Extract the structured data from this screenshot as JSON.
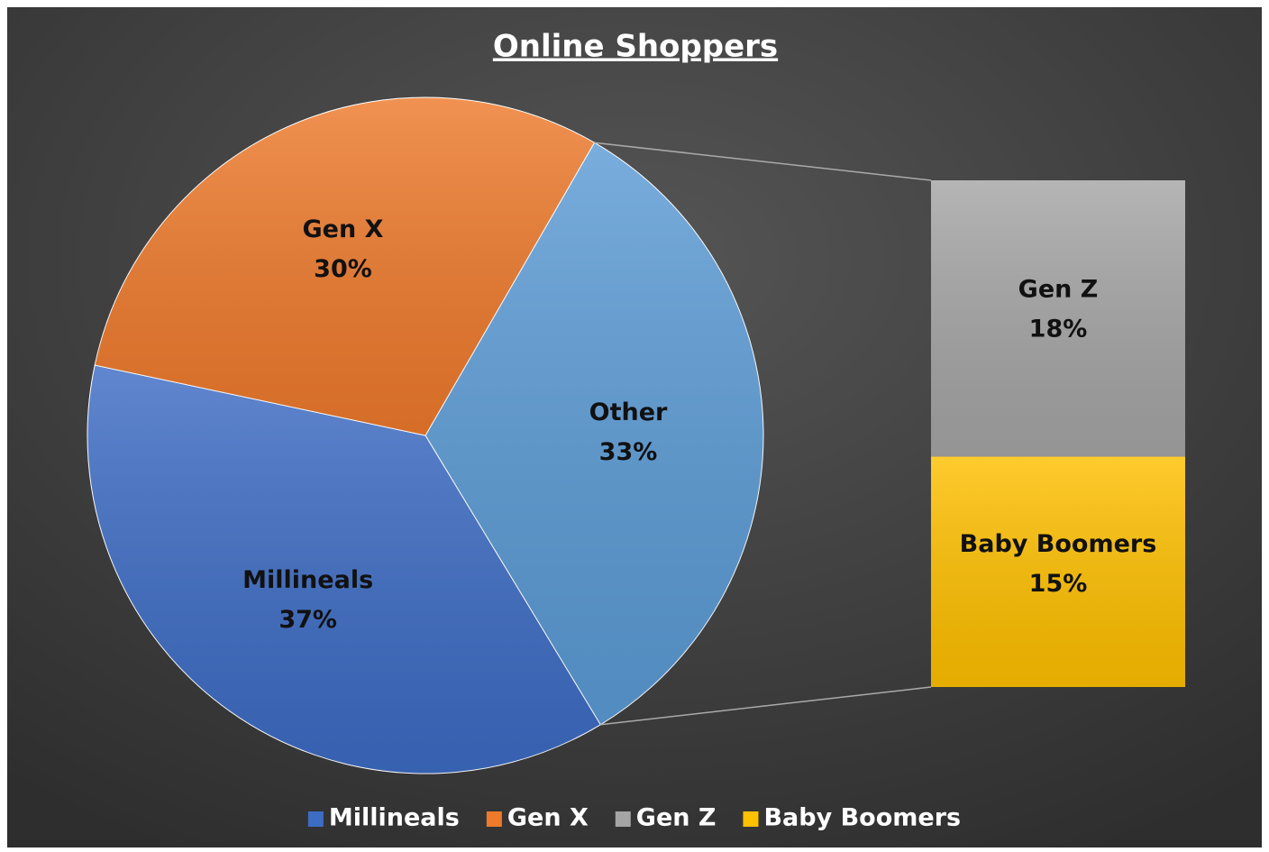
{
  "chart_data": {
    "type": "bar-of-pie",
    "title": "Online Shoppers",
    "pie": {
      "categories": [
        "Millineals",
        "Gen X",
        "Other"
      ],
      "values": [
        37,
        30,
        33
      ],
      "value_labels": [
        "37%",
        "30%",
        "33%"
      ],
      "colors": [
        "#3d6cc4",
        "#ee7a2c",
        "#5b9bd5"
      ]
    },
    "bar": {
      "categories": [
        "Gen Z",
        "Baby Boomers"
      ],
      "values": [
        18,
        15
      ],
      "value_labels": [
        "18%",
        "15%"
      ],
      "colors": [
        "#a5a5a5",
        "#ffc000"
      ]
    },
    "legend": "bottom"
  }
}
